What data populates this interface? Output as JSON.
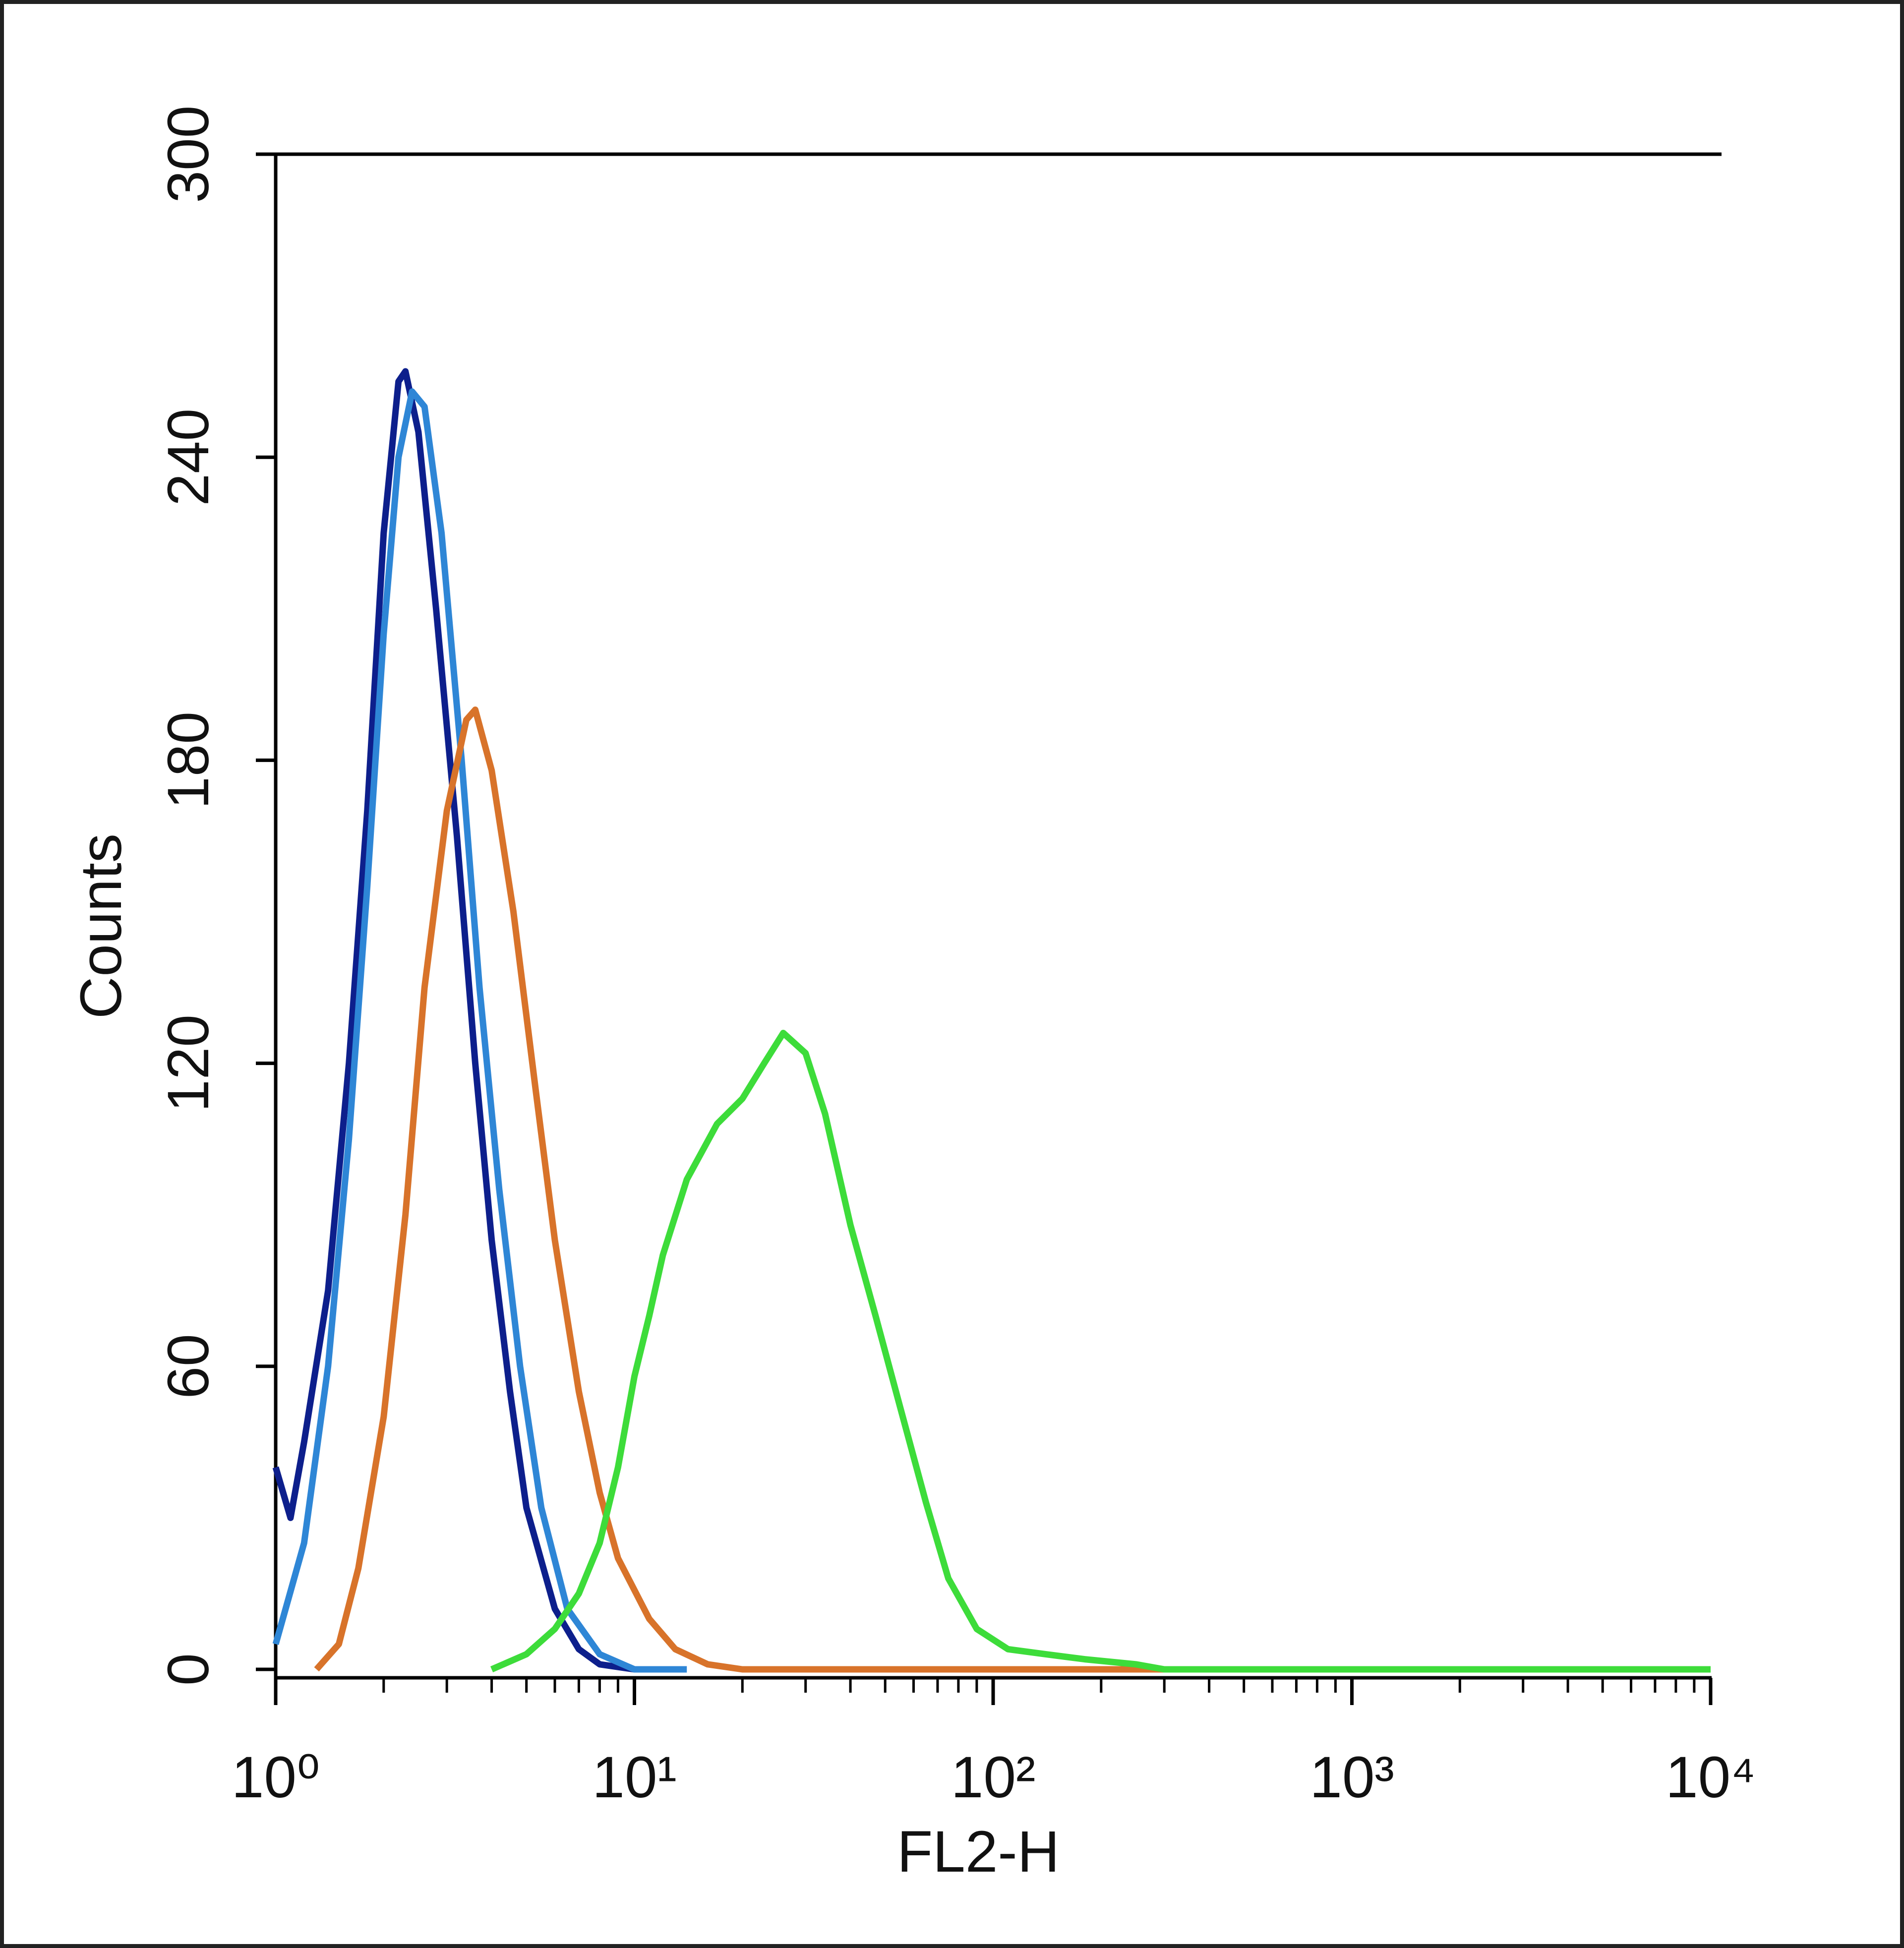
{
  "chart_data": {
    "type": "line",
    "x_label": "FL2-H",
    "y_label": "Counts",
    "xlog": true,
    "xlim": [
      1,
      10000
    ],
    "ylim": [
      0,
      300
    ],
    "xticks": [
      {
        "value": 1,
        "label": "10⁰"
      },
      {
        "value": 10,
        "label": "10¹"
      },
      {
        "value": 100,
        "label": "10²"
      },
      {
        "value": 1000,
        "label": "10³"
      },
      {
        "value": 10000,
        "label": "10⁴"
      }
    ],
    "yticks": [
      0,
      60,
      120,
      180,
      240,
      300
    ],
    "series": [
      {
        "color": "#0d1f8c",
        "x": [
          1,
          1.1,
          1.2,
          1.4,
          1.6,
          1.8,
          2.0,
          2.2,
          2.3,
          2.5,
          2.8,
          3.2,
          3.6,
          4.0,
          4.5,
          5,
          6,
          7,
          8,
          10
        ],
        "values": [
          40,
          30,
          45,
          75,
          120,
          170,
          225,
          255,
          257,
          245,
          210,
          165,
          120,
          85,
          55,
          32,
          12,
          4,
          1,
          0
        ]
      },
      {
        "color": "#2e86d6",
        "x": [
          1,
          1.2,
          1.4,
          1.6,
          1.8,
          2.0,
          2.2,
          2.4,
          2.6,
          2.9,
          3.3,
          3.7,
          4.2,
          4.8,
          5.5,
          6.5,
          8,
          10,
          14
        ],
        "values": [
          5,
          25,
          60,
          105,
          155,
          205,
          240,
          253,
          250,
          225,
          180,
          135,
          95,
          60,
          32,
          12,
          3,
          0,
          0
        ]
      },
      {
        "color": "#d8732a",
        "x": [
          1.3,
          1.5,
          1.7,
          2,
          2.3,
          2.6,
          3,
          3.4,
          3.6,
          4,
          4.6,
          5.3,
          6,
          7,
          8,
          9,
          11,
          13,
          16,
          20,
          10000
        ],
        "values": [
          0,
          5,
          20,
          50,
          90,
          135,
          170,
          188,
          190,
          178,
          150,
          115,
          85,
          55,
          35,
          22,
          10,
          4,
          1,
          0,
          0
        ]
      },
      {
        "color": "#3ddc3a",
        "x": [
          4,
          5,
          6,
          7,
          8,
          9,
          10,
          11,
          12,
          14,
          17,
          20,
          23,
          26,
          30,
          34,
          40,
          47,
          55,
          65,
          75,
          90,
          110,
          140,
          180,
          250,
          300,
          10000
        ],
        "values": [
          0,
          3,
          8,
          15,
          25,
          40,
          58,
          70,
          82,
          97,
          108,
          113,
          120,
          126,
          122,
          110,
          88,
          70,
          52,
          33,
          18,
          8,
          4,
          3,
          2,
          1,
          0,
          0
        ]
      }
    ]
  }
}
